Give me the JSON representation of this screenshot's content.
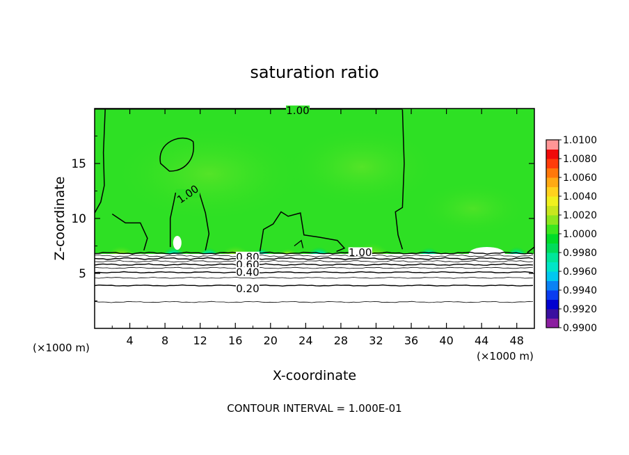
{
  "chart_data": {
    "type": "heatmap",
    "title": "saturation ratio",
    "xlabel": "X-coordinate",
    "ylabel": "Z-coordinate",
    "x_unit": "(×1000 m)",
    "x_unit_right": "(×1000 m)",
    "footer": "CONTOUR INTERVAL = 1.000E-01",
    "xlim": [
      0,
      50
    ],
    "ylim": [
      0,
      20
    ],
    "xticks": [
      4,
      8,
      12,
      16,
      20,
      24,
      28,
      32,
      36,
      40,
      44,
      48
    ],
    "yticks": [
      5,
      10,
      15
    ],
    "colorbar": {
      "min": 0.99,
      "max": 1.01,
      "labels": [
        "1.0100",
        "1.0080",
        "1.0060",
        "1.0040",
        "1.0020",
        "1.0000",
        "0.9980",
        "0.9960",
        "0.9940",
        "0.9920",
        "0.9900"
      ],
      "colors": [
        "#8b1fa0",
        "#3a0fa0",
        "#0000d0",
        "#0a3cf0",
        "#0a82f5",
        "#00c8f0",
        "#00e6c8",
        "#00e69a",
        "#00dc5a",
        "#00dc28",
        "#3ce61e",
        "#8ce61e",
        "#c8e61e",
        "#f0f01e",
        "#ffd21e",
        "#ffaa14",
        "#ff780a",
        "#ff3c0a",
        "#f00a0a",
        "#ff9696"
      ]
    },
    "cloud_top_z": 6.9,
    "contour_labels": [
      {
        "text": "1.00",
        "x": 23.1,
        "z": 19.8
      },
      {
        "text": "1.00",
        "x": 10.6,
        "z": 12.2
      },
      {
        "text": "1.00",
        "x": 30.2,
        "z": 6.9
      },
      {
        "text": "0.80",
        "x": 17.4,
        "z": 6.5
      },
      {
        "text": "0.60",
        "x": 17.4,
        "z": 5.8
      },
      {
        "text": "0.40",
        "x": 17.4,
        "z": 5.1
      },
      {
        "text": "0.20",
        "x": 17.4,
        "z": 3.6
      }
    ]
  }
}
